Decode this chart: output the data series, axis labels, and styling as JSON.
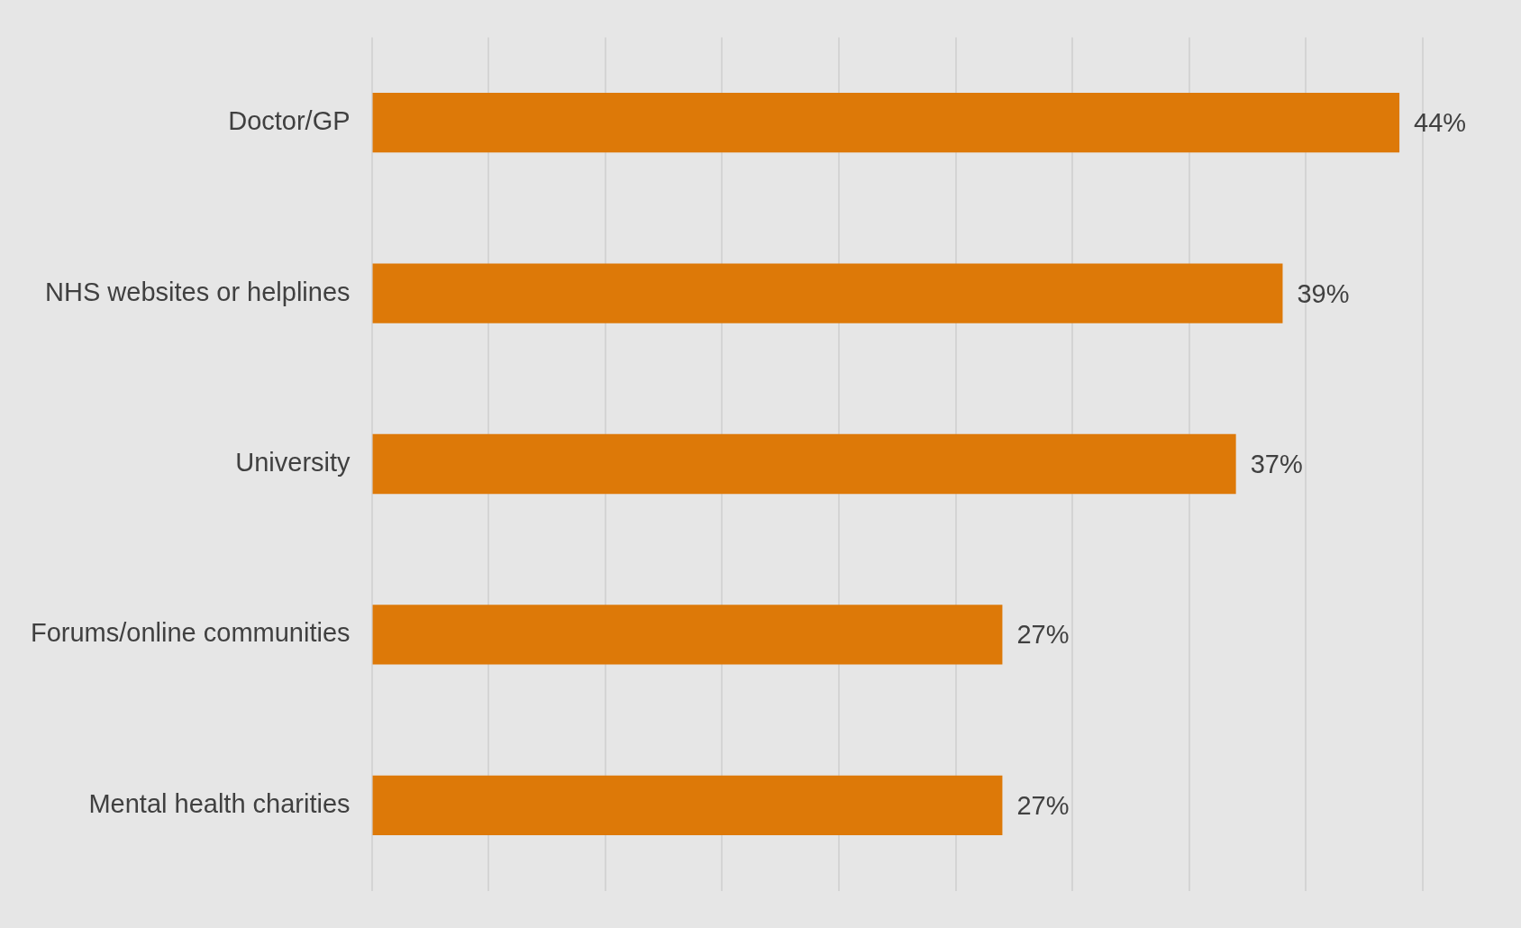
{
  "chart_data": {
    "type": "bar",
    "orientation": "horizontal",
    "categories": [
      "Doctor/GP",
      "NHS websites or helplines",
      "University",
      "Forums/online communities",
      "Mental health charities"
    ],
    "values": [
      44,
      39,
      37,
      27,
      27
    ],
    "value_labels": [
      "44%",
      "39%",
      "37%",
      "27%",
      "27%"
    ],
    "color": "#dd7908",
    "xlim": [
      0,
      45
    ],
    "xticks": [
      0,
      5,
      10,
      15,
      20,
      25,
      30,
      35,
      40,
      45
    ],
    "grid": "x",
    "tick_labels": "y"
  }
}
